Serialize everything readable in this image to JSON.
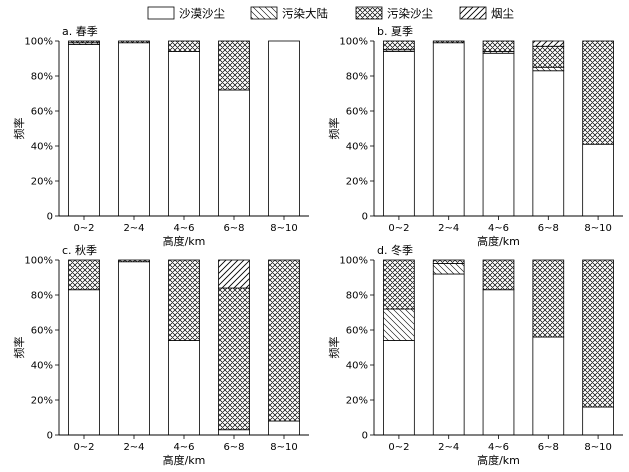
{
  "legend": {
    "position": "top",
    "items": [
      {
        "name": "沙漠沙尘",
        "pattern": "plain"
      },
      {
        "name": "污染大陆",
        "pattern": "diag-thin"
      },
      {
        "name": "污染沙尘",
        "pattern": "cross"
      },
      {
        "name": "烟尘",
        "pattern": "diag-bold"
      }
    ]
  },
  "chart_data": [
    {
      "type": "bar",
      "stacked": true,
      "title": "a. 春季",
      "xlabel": "高度/km",
      "ylabel": "频率",
      "ylim": [
        0,
        100
      ],
      "yticks": [
        "0",
        "20%",
        "40%",
        "60%",
        "80%",
        "100%"
      ],
      "categories": [
        "0~2",
        "2~4",
        "4~6",
        "6~8",
        "8~10"
      ],
      "series": [
        {
          "name": "沙漠沙尘",
          "values": [
            98,
            99,
            94,
            72,
            100
          ]
        },
        {
          "name": "污染大陆",
          "values": [
            1,
            0,
            0,
            0,
            0
          ]
        },
        {
          "name": "污染沙尘",
          "values": [
            1,
            1,
            6,
            28,
            0
          ]
        },
        {
          "name": "烟尘",
          "values": [
            0,
            0,
            0,
            0,
            0
          ]
        }
      ]
    },
    {
      "type": "bar",
      "stacked": true,
      "title": "b. 夏季",
      "xlabel": "高度/km",
      "ylabel": "频率",
      "ylim": [
        0,
        100
      ],
      "yticks": [
        "0",
        "20%",
        "40%",
        "60%",
        "80%",
        "100%"
      ],
      "categories": [
        "0~2",
        "2~4",
        "4~6",
        "6~8",
        "8~10"
      ],
      "series": [
        {
          "name": "沙漠沙尘",
          "values": [
            94,
            99,
            93,
            83,
            41
          ]
        },
        {
          "name": "污染大陆",
          "values": [
            1,
            0,
            1,
            2,
            0
          ]
        },
        {
          "name": "污染沙尘",
          "values": [
            5,
            1,
            6,
            12,
            59
          ]
        },
        {
          "name": "烟尘",
          "values": [
            0,
            0,
            0,
            3,
            0
          ]
        }
      ]
    },
    {
      "type": "bar",
      "stacked": true,
      "title": "c. 秋季",
      "xlabel": "高度/km",
      "ylabel": "频率",
      "ylim": [
        0,
        100
      ],
      "yticks": [
        "0",
        "20%",
        "40%",
        "60%",
        "80%",
        "100%"
      ],
      "categories": [
        "0~2",
        "2~4",
        "4~6",
        "6~8",
        "8~10"
      ],
      "series": [
        {
          "name": "沙漠沙尘",
          "values": [
            83,
            99,
            54,
            3,
            8
          ]
        },
        {
          "name": "污染大陆",
          "values": [
            0,
            0,
            0,
            0,
            0
          ]
        },
        {
          "name": "污染沙尘",
          "values": [
            17,
            1,
            46,
            81,
            92
          ]
        },
        {
          "name": "烟尘",
          "values": [
            0,
            0,
            0,
            16,
            0
          ]
        }
      ]
    },
    {
      "type": "bar",
      "stacked": true,
      "title": "d. 冬季",
      "xlabel": "高度/km",
      "ylabel": "频率",
      "ylim": [
        0,
        100
      ],
      "yticks": [
        "0",
        "20%",
        "40%",
        "60%",
        "80%",
        "100%"
      ],
      "categories": [
        "0~2",
        "2~4",
        "4~6",
        "6~8",
        "8~10"
      ],
      "series": [
        {
          "name": "沙漠沙尘",
          "values": [
            54,
            92,
            83,
            56,
            16
          ]
        },
        {
          "name": "污染大陆",
          "values": [
            18,
            6,
            0,
            0,
            0
          ]
        },
        {
          "name": "污染沙尘",
          "values": [
            28,
            2,
            17,
            44,
            84
          ]
        },
        {
          "name": "烟尘",
          "values": [
            0,
            0,
            0,
            0,
            0
          ]
        }
      ]
    }
  ]
}
